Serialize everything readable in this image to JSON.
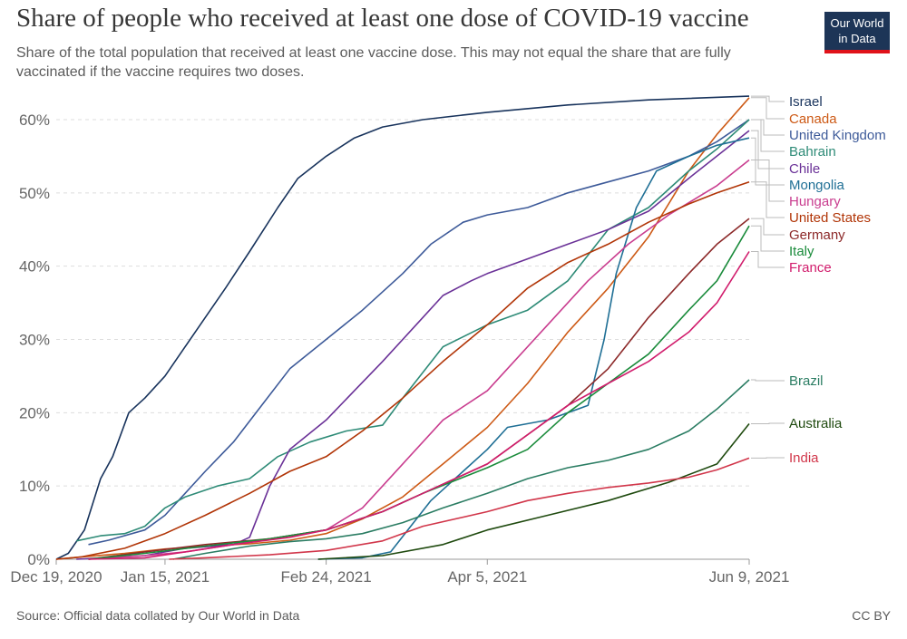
{
  "header": {
    "title": "Share of people who received at least one dose of COVID-19 vaccine",
    "subtitle": "Share of the total population that received at least one vaccine dose. This may not equal the share that are fully vaccinated if the vaccine requires two doses."
  },
  "logo": {
    "line1": "Our World",
    "line2": "in Data",
    "bg_color": "#1d3557",
    "bar_color": "#e0121a"
  },
  "footer": {
    "source": "Source: Official data collated by Our World in Data",
    "license": "CC BY"
  },
  "chart_data": {
    "type": "line",
    "xlim": [
      "2020-12-19",
      "2021-06-09"
    ],
    "ylim": [
      0,
      60
    ],
    "y_ticks": [
      0,
      10,
      20,
      30,
      40,
      50,
      60
    ],
    "y_tick_labels": [
      "0%",
      "10%",
      "20%",
      "30%",
      "40%",
      "50%",
      "60%"
    ],
    "x_ticks": [
      "2020-12-19",
      "2021-01-15",
      "2021-02-24",
      "2021-04-05",
      "2021-06-09"
    ],
    "x_tick_labels": [
      "Dec 19, 2020",
      "Jan 15, 2021",
      "Feb 24, 2021",
      "Apr 5, 2021",
      "Jun 9, 2021"
    ],
    "grid": "horizontal dashed",
    "legend": "right, end of lines",
    "series": [
      {
        "name": "Israel",
        "color": "#18335c",
        "points": [
          [
            "2020-12-19",
            0
          ],
          [
            "2020-12-22",
            0.8
          ],
          [
            "2020-12-26",
            4
          ],
          [
            "2020-12-30",
            11
          ],
          [
            "2021-01-02",
            14
          ],
          [
            "2021-01-06",
            20
          ],
          [
            "2021-01-10",
            22
          ],
          [
            "2021-01-15",
            25
          ],
          [
            "2021-01-20",
            29
          ],
          [
            "2021-01-25",
            33
          ],
          [
            "2021-01-30",
            37
          ],
          [
            "2021-02-05",
            42
          ],
          [
            "2021-02-12",
            48
          ],
          [
            "2021-02-17",
            52
          ],
          [
            "2021-02-24",
            55
          ],
          [
            "2021-03-03",
            57.5
          ],
          [
            "2021-03-10",
            59
          ],
          [
            "2021-03-20",
            60
          ],
          [
            "2021-04-05",
            61
          ],
          [
            "2021-04-25",
            62
          ],
          [
            "2021-05-15",
            62.7
          ],
          [
            "2021-06-09",
            63.2
          ]
        ]
      },
      {
        "name": "Canada",
        "color": "#cd5a16",
        "points": [
          [
            "2020-12-19",
            0
          ],
          [
            "2020-12-25",
            0.3
          ],
          [
            "2021-01-05",
            0.8
          ],
          [
            "2021-01-15",
            1.4
          ],
          [
            "2021-01-25",
            1.8
          ],
          [
            "2021-02-05",
            2.1
          ],
          [
            "2021-02-15",
            2.6
          ],
          [
            "2021-02-24",
            3.5
          ],
          [
            "2021-03-05",
            5.5
          ],
          [
            "2021-03-15",
            8.5
          ],
          [
            "2021-03-25",
            13
          ],
          [
            "2021-04-05",
            18
          ],
          [
            "2021-04-15",
            24
          ],
          [
            "2021-04-25",
            31
          ],
          [
            "2021-05-05",
            37
          ],
          [
            "2021-05-15",
            44
          ],
          [
            "2021-05-25",
            53
          ],
          [
            "2021-06-01",
            58
          ],
          [
            "2021-06-09",
            63
          ]
        ]
      },
      {
        "name": "United Kingdom",
        "color": "#3d5a99",
        "points": [
          [
            "2020-12-27",
            2
          ],
          [
            "2021-01-01",
            2.6
          ],
          [
            "2021-01-10",
            4
          ],
          [
            "2021-01-15",
            6
          ],
          [
            "2021-01-20",
            9
          ],
          [
            "2021-01-25",
            12
          ],
          [
            "2021-02-01",
            16
          ],
          [
            "2021-02-08",
            21
          ],
          [
            "2021-02-15",
            26
          ],
          [
            "2021-02-24",
            30
          ],
          [
            "2021-03-05",
            34
          ],
          [
            "2021-03-15",
            39
          ],
          [
            "2021-03-22",
            43
          ],
          [
            "2021-03-30",
            46
          ],
          [
            "2021-04-05",
            47
          ],
          [
            "2021-04-15",
            48
          ],
          [
            "2021-04-25",
            50
          ],
          [
            "2021-05-05",
            51.5
          ],
          [
            "2021-05-15",
            53
          ],
          [
            "2021-05-25",
            55
          ],
          [
            "2021-06-01",
            57
          ],
          [
            "2021-06-09",
            60
          ]
        ]
      },
      {
        "name": "Bahrain",
        "color": "#2e8b77",
        "points": [
          [
            "2020-12-24",
            2.5
          ],
          [
            "2020-12-30",
            3.2
          ],
          [
            "2021-01-05",
            3.5
          ],
          [
            "2021-01-10",
            4.5
          ],
          [
            "2021-01-15",
            7
          ],
          [
            "2021-01-20",
            8.5
          ],
          [
            "2021-01-28",
            10
          ],
          [
            "2021-02-05",
            11
          ],
          [
            "2021-02-12",
            14
          ],
          [
            "2021-02-20",
            16
          ],
          [
            "2021-03-01",
            17.5
          ],
          [
            "2021-03-10",
            18.3
          ],
          [
            "2021-03-15",
            22
          ],
          [
            "2021-03-25",
            29
          ],
          [
            "2021-04-05",
            32
          ],
          [
            "2021-04-15",
            34
          ],
          [
            "2021-04-25",
            38
          ],
          [
            "2021-05-05",
            45
          ],
          [
            "2021-05-15",
            48
          ],
          [
            "2021-05-25",
            53
          ],
          [
            "2021-06-01",
            56
          ],
          [
            "2021-06-09",
            60
          ]
        ]
      },
      {
        "name": "Chile",
        "color": "#6a3197",
        "points": [
          [
            "2020-12-24",
            0
          ],
          [
            "2021-01-10",
            0.5
          ],
          [
            "2021-01-20",
            1.5
          ],
          [
            "2021-02-01",
            2
          ],
          [
            "2021-02-05",
            3
          ],
          [
            "2021-02-10",
            10
          ],
          [
            "2021-02-15",
            15
          ],
          [
            "2021-02-24",
            19
          ],
          [
            "2021-03-03",
            23
          ],
          [
            "2021-03-10",
            27
          ],
          [
            "2021-03-20",
            33
          ],
          [
            "2021-03-25",
            36
          ],
          [
            "2021-04-01",
            38
          ],
          [
            "2021-04-05",
            39
          ],
          [
            "2021-04-15",
            41
          ],
          [
            "2021-04-25",
            43
          ],
          [
            "2021-05-05",
            45
          ],
          [
            "2021-05-15",
            47.5
          ],
          [
            "2021-05-25",
            52
          ],
          [
            "2021-06-09",
            58.5
          ]
        ]
      },
      {
        "name": "Mongolia",
        "color": "#1f6f95",
        "points": [
          [
            "2021-02-22",
            0
          ],
          [
            "2021-03-05",
            0.2
          ],
          [
            "2021-03-12",
            1
          ],
          [
            "2021-03-22",
            8
          ],
          [
            "2021-03-30",
            12
          ],
          [
            "2021-04-05",
            15
          ],
          [
            "2021-04-10",
            18
          ],
          [
            "2021-04-20",
            19
          ],
          [
            "2021-04-30",
            21
          ],
          [
            "2021-05-04",
            30
          ],
          [
            "2021-05-07",
            39
          ],
          [
            "2021-05-12",
            48
          ],
          [
            "2021-05-17",
            53
          ],
          [
            "2021-05-25",
            55
          ],
          [
            "2021-06-01",
            56.5
          ],
          [
            "2021-06-09",
            57.5
          ]
        ]
      },
      {
        "name": "Hungary",
        "color": "#c93d8f",
        "points": [
          [
            "2020-12-27",
            0
          ],
          [
            "2021-01-10",
            0.5
          ],
          [
            "2021-01-20",
            1
          ],
          [
            "2021-02-01",
            2
          ],
          [
            "2021-02-10",
            2.8
          ],
          [
            "2021-02-24",
            4
          ],
          [
            "2021-03-05",
            7
          ],
          [
            "2021-03-15",
            13
          ],
          [
            "2021-03-25",
            19
          ],
          [
            "2021-04-05",
            23
          ],
          [
            "2021-04-10",
            26
          ],
          [
            "2021-04-20",
            32
          ],
          [
            "2021-04-30",
            38
          ],
          [
            "2021-05-10",
            43
          ],
          [
            "2021-05-20",
            47
          ],
          [
            "2021-06-01",
            51
          ],
          [
            "2021-06-09",
            54.5
          ]
        ]
      },
      {
        "name": "United States",
        "color": "#b13507",
        "points": [
          [
            "2020-12-19",
            0
          ],
          [
            "2020-12-25",
            0.3
          ],
          [
            "2021-01-05",
            1.5
          ],
          [
            "2021-01-15",
            3.5
          ],
          [
            "2021-01-25",
            6
          ],
          [
            "2021-02-05",
            9
          ],
          [
            "2021-02-15",
            12
          ],
          [
            "2021-02-24",
            14
          ],
          [
            "2021-03-05",
            17.5
          ],
          [
            "2021-03-15",
            22
          ],
          [
            "2021-03-25",
            27
          ],
          [
            "2021-04-05",
            32
          ],
          [
            "2021-04-15",
            37
          ],
          [
            "2021-04-25",
            40.5
          ],
          [
            "2021-05-05",
            43
          ],
          [
            "2021-05-15",
            46
          ],
          [
            "2021-05-25",
            48.5
          ],
          [
            "2021-06-01",
            50
          ],
          [
            "2021-06-09",
            51.5
          ]
        ]
      },
      {
        "name": "Germany",
        "color": "#8c2929",
        "points": [
          [
            "2020-12-27",
            0
          ],
          [
            "2021-01-10",
            1
          ],
          [
            "2021-01-25",
            2
          ],
          [
            "2021-02-10",
            2.8
          ],
          [
            "2021-02-24",
            4
          ],
          [
            "2021-03-10",
            6.5
          ],
          [
            "2021-03-20",
            9
          ],
          [
            "2021-04-05",
            13
          ],
          [
            "2021-04-15",
            17
          ],
          [
            "2021-04-25",
            21
          ],
          [
            "2021-05-05",
            26
          ],
          [
            "2021-05-15",
            33
          ],
          [
            "2021-05-25",
            39
          ],
          [
            "2021-06-01",
            43
          ],
          [
            "2021-06-09",
            46.5
          ]
        ]
      },
      {
        "name": "Italy",
        "color": "#1a8b3b",
        "points": [
          [
            "2020-12-27",
            0
          ],
          [
            "2021-01-10",
            0.8
          ],
          [
            "2021-01-25",
            1.8
          ],
          [
            "2021-02-10",
            2.8
          ],
          [
            "2021-02-24",
            4
          ],
          [
            "2021-03-10",
            6.5
          ],
          [
            "2021-03-20",
            9
          ],
          [
            "2021-04-05",
            12.5
          ],
          [
            "2021-04-15",
            15
          ],
          [
            "2021-04-25",
            20
          ],
          [
            "2021-05-05",
            24
          ],
          [
            "2021-05-15",
            28
          ],
          [
            "2021-05-25",
            34
          ],
          [
            "2021-06-01",
            38
          ],
          [
            "2021-06-09",
            45.5
          ]
        ]
      },
      {
        "name": "France",
        "color": "#d11c6c",
        "points": [
          [
            "2020-12-27",
            0
          ],
          [
            "2021-01-10",
            0.2
          ],
          [
            "2021-01-20",
            1
          ],
          [
            "2021-02-01",
            2
          ],
          [
            "2021-02-15",
            3
          ],
          [
            "2021-02-24",
            4
          ],
          [
            "2021-03-10",
            6.5
          ],
          [
            "2021-03-20",
            9
          ],
          [
            "2021-04-05",
            13
          ],
          [
            "2021-04-15",
            17
          ],
          [
            "2021-04-25",
            21
          ],
          [
            "2021-05-05",
            24
          ],
          [
            "2021-05-15",
            27
          ],
          [
            "2021-05-25",
            31
          ],
          [
            "2021-06-01",
            35
          ],
          [
            "2021-06-09",
            42
          ]
        ]
      },
      {
        "name": "Brazil",
        "color": "#2b7d63",
        "points": [
          [
            "2021-01-17",
            0
          ],
          [
            "2021-01-25",
            0.8
          ],
          [
            "2021-02-05",
            1.8
          ],
          [
            "2021-02-15",
            2.4
          ],
          [
            "2021-02-24",
            2.8
          ],
          [
            "2021-03-05",
            3.5
          ],
          [
            "2021-03-15",
            5
          ],
          [
            "2021-03-25",
            7
          ],
          [
            "2021-04-05",
            9
          ],
          [
            "2021-04-15",
            11
          ],
          [
            "2021-04-25",
            12.5
          ],
          [
            "2021-05-05",
            13.5
          ],
          [
            "2021-05-15",
            15
          ],
          [
            "2021-05-25",
            17.5
          ],
          [
            "2021-06-01",
            20.5
          ],
          [
            "2021-06-09",
            24.5
          ]
        ]
      },
      {
        "name": "Australia",
        "color": "#1f4a0f",
        "points": [
          [
            "2021-02-22",
            0
          ],
          [
            "2021-03-10",
            0.5
          ],
          [
            "2021-03-25",
            2
          ],
          [
            "2021-04-05",
            4
          ],
          [
            "2021-04-20",
            6
          ],
          [
            "2021-05-05",
            8
          ],
          [
            "2021-05-20",
            10.5
          ],
          [
            "2021-06-01",
            13
          ],
          [
            "2021-06-09",
            18.5
          ]
        ]
      },
      {
        "name": "India",
        "color": "#d1364a",
        "points": [
          [
            "2021-01-16",
            0
          ],
          [
            "2021-01-25",
            0.2
          ],
          [
            "2021-02-10",
            0.6
          ],
          [
            "2021-02-24",
            1.2
          ],
          [
            "2021-03-10",
            2.5
          ],
          [
            "2021-03-20",
            4.5
          ],
          [
            "2021-04-05",
            6.5
          ],
          [
            "2021-04-15",
            8
          ],
          [
            "2021-04-25",
            9
          ],
          [
            "2021-05-05",
            9.8
          ],
          [
            "2021-05-15",
            10.4
          ],
          [
            "2021-05-25",
            11.2
          ],
          [
            "2021-06-01",
            12.2
          ],
          [
            "2021-06-09",
            13.8
          ]
        ]
      }
    ]
  }
}
